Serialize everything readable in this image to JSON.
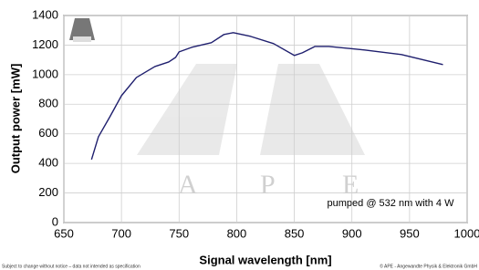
{
  "chart_data": {
    "type": "line",
    "x_label": "Signal wavelength [nm]",
    "y_label": "Output power [mW]",
    "annotation": "pumped @ 532 nm with 4 W",
    "footer_left": "Subject to change without notice – data not intended as specification",
    "footer_right": "© APE - Angewandte Physik & Elektronik GmbH",
    "x": [
      674,
      680,
      690,
      700,
      713,
      729,
      741,
      747,
      750,
      761,
      778,
      789,
      797,
      812,
      832,
      850,
      857,
      868,
      880,
      911,
      943,
      979
    ],
    "series": [
      {
        "color": "#1f1f6e",
        "values": [
          426,
          580,
          716,
          858,
          981,
          1055,
          1086,
          1117,
          1154,
          1185,
          1216,
          1272,
          1284,
          1259,
          1210,
          1130,
          1148,
          1191,
          1191,
          1167,
          1136,
          1068
        ]
      }
    ],
    "xlim": [
      650,
      1000
    ],
    "xticks": [
      650,
      700,
      750,
      800,
      850,
      900,
      950,
      1000
    ],
    "ylim": [
      0,
      1400
    ],
    "yticks": [
      0,
      200,
      400,
      600,
      800,
      1000,
      1200,
      1400
    ],
    "grid": true
  }
}
